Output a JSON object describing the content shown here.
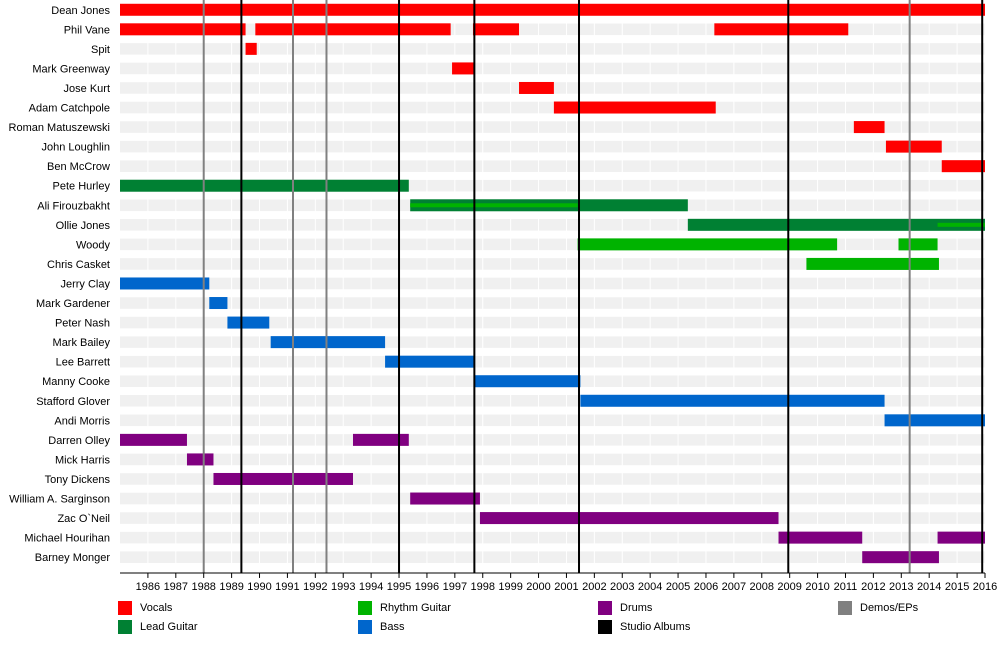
{
  "chart_data": {
    "type": "timeline",
    "x_range": [
      1985,
      2016
    ],
    "year_labels": [
      "1986",
      "1987",
      "1988",
      "1989",
      "1990",
      "1991",
      "1992",
      "1993",
      "1994",
      "1995",
      "1996",
      "1997",
      "1998",
      "1999",
      "2000",
      "2001",
      "2002",
      "2003",
      "2004",
      "2005",
      "2006",
      "2007",
      "2008",
      "2009",
      "2010",
      "2011",
      "2012",
      "2013",
      "2014",
      "2015",
      "2016"
    ],
    "members": [
      {
        "name": "Dean Jones",
        "spans": [
          {
            "role": "vocals",
            "start": 1985.0,
            "end": 2016.0
          }
        ]
      },
      {
        "name": "Phil Vane",
        "spans": [
          {
            "role": "vocals",
            "start": 1985.0,
            "end": 1989.5
          },
          {
            "role": "vocals",
            "start": 1989.85,
            "end": 1996.85
          },
          {
            "role": "vocals",
            "start": 1997.65,
            "end": 1999.3
          },
          {
            "role": "vocals",
            "start": 2006.3,
            "end": 2011.1
          }
        ]
      },
      {
        "name": "Spit",
        "spans": [
          {
            "role": "vocals",
            "start": 1989.5,
            "end": 1989.9
          }
        ]
      },
      {
        "name": "Mark Greenway",
        "spans": [
          {
            "role": "vocals",
            "start": 1996.9,
            "end": 1997.7
          }
        ]
      },
      {
        "name": "Jose Kurt",
        "spans": [
          {
            "role": "vocals",
            "start": 1999.3,
            "end": 2000.55
          }
        ]
      },
      {
        "name": "Adam Catchpole",
        "spans": [
          {
            "role": "vocals",
            "start": 2000.55,
            "end": 2006.35
          }
        ]
      },
      {
        "name": "Roman Matuszewski",
        "spans": [
          {
            "role": "vocals",
            "start": 2011.3,
            "end": 2012.4
          }
        ]
      },
      {
        "name": "John Loughlin",
        "spans": [
          {
            "role": "vocals",
            "start": 2012.45,
            "end": 2014.45
          }
        ]
      },
      {
        "name": "Ben McCrow",
        "spans": [
          {
            "role": "vocals",
            "start": 2014.45,
            "end": 2016.0
          }
        ]
      },
      {
        "name": "Pete Hurley",
        "spans": [
          {
            "role": "lead",
            "start": 1985.0,
            "end": 1995.35
          }
        ]
      },
      {
        "name": "Ali Firouzbakht",
        "spans": [
          {
            "role": "lead",
            "start": 1995.4,
            "end": 2005.35
          }
        ]
      },
      {
        "name": "Ollie Jones",
        "spans": [
          {
            "role": "lead",
            "start": 2005.35,
            "end": 2016.0
          }
        ]
      },
      {
        "name": "Woody",
        "spans": [
          {
            "role": "rhythm",
            "start": 2001.4,
            "end": 2010.7
          },
          {
            "role": "rhythm",
            "start": 2012.9,
            "end": 2014.3
          }
        ]
      },
      {
        "name": "Chris Casket",
        "spans": [
          {
            "role": "rhythm",
            "start": 2009.6,
            "end": 2014.35
          }
        ]
      },
      {
        "name": "Jerry Clay",
        "spans": [
          {
            "role": "bass",
            "start": 1985.0,
            "end": 1988.2
          }
        ]
      },
      {
        "name": "Mark Gardener",
        "spans": [
          {
            "role": "bass",
            "start": 1988.2,
            "end": 1988.85
          }
        ]
      },
      {
        "name": "Peter Nash",
        "spans": [
          {
            "role": "bass",
            "start": 1988.85,
            "end": 1990.35
          }
        ]
      },
      {
        "name": "Mark Bailey",
        "spans": [
          {
            "role": "bass",
            "start": 1990.4,
            "end": 1994.5
          }
        ]
      },
      {
        "name": "Lee Barrett",
        "spans": [
          {
            "role": "bass",
            "start": 1994.5,
            "end": 1997.7
          }
        ]
      },
      {
        "name": "Manny Cooke",
        "spans": [
          {
            "role": "bass",
            "start": 1997.7,
            "end": 2001.5
          }
        ]
      },
      {
        "name": "Stafford Glover",
        "spans": [
          {
            "role": "bass",
            "start": 2001.5,
            "end": 2012.4
          }
        ]
      },
      {
        "name": "Andi Morris",
        "spans": [
          {
            "role": "bass",
            "start": 2012.4,
            "end": 2016.0
          }
        ]
      },
      {
        "name": "Darren Olley",
        "spans": [
          {
            "role": "drums",
            "start": 1985.0,
            "end": 1987.4
          },
          {
            "role": "drums",
            "start": 1993.35,
            "end": 1995.35
          }
        ]
      },
      {
        "name": "Mick Harris",
        "spans": [
          {
            "role": "drums",
            "start": 1987.4,
            "end": 1988.35
          }
        ]
      },
      {
        "name": "Tony Dickens",
        "spans": [
          {
            "role": "drums",
            "start": 1988.35,
            "end": 1993.35
          }
        ]
      },
      {
        "name": "William A. Sarginson",
        "spans": [
          {
            "role": "drums",
            "start": 1995.4,
            "end": 1997.9
          }
        ]
      },
      {
        "name": "Zac O`Neil",
        "spans": [
          {
            "role": "drums",
            "start": 1997.9,
            "end": 2008.6
          }
        ]
      },
      {
        "name": "Michael Hourihan",
        "spans": [
          {
            "role": "drums",
            "start": 2008.6,
            "end": 2011.6
          },
          {
            "role": "drums",
            "start": 2014.3,
            "end": 2016.0
          }
        ]
      },
      {
        "name": "Barney Monger",
        "spans": [
          {
            "role": "drums",
            "start": 2011.6,
            "end": 2014.35
          }
        ]
      }
    ],
    "secondary_bars": [
      {
        "member": "Ali Firouzbakht",
        "role": "rhythm",
        "start": 1995.4,
        "end": 2001.4
      },
      {
        "member": "Ollie Jones",
        "role": "rhythm",
        "start": 2014.3,
        "end": 2016.0
      }
    ],
    "studio_albums": [
      1989.35,
      1995.0,
      1997.7,
      2001.45,
      2008.95,
      2015.9
    ],
    "demos_eps": [
      1988.0,
      1991.2,
      1992.4,
      2013.3
    ],
    "legend": [
      {
        "key": "vocals",
        "label": "Vocals",
        "color": "#ff0000"
      },
      {
        "key": "lead",
        "label": "Lead Guitar",
        "color": "#008033"
      },
      {
        "key": "rhythm",
        "label": "Rhythm Guitar",
        "color": "#00b300"
      },
      {
        "key": "bass",
        "label": "Bass",
        "color": "#0066cc"
      },
      {
        "key": "drums",
        "label": "Drums",
        "color": "#800080"
      },
      {
        "key": "album",
        "label": "Studio Albums",
        "color": "#000000"
      },
      {
        "key": "demo",
        "label": "Demos/EPs",
        "color": "#808080"
      }
    ],
    "grid": true,
    "legend_placement": "bottom"
  }
}
